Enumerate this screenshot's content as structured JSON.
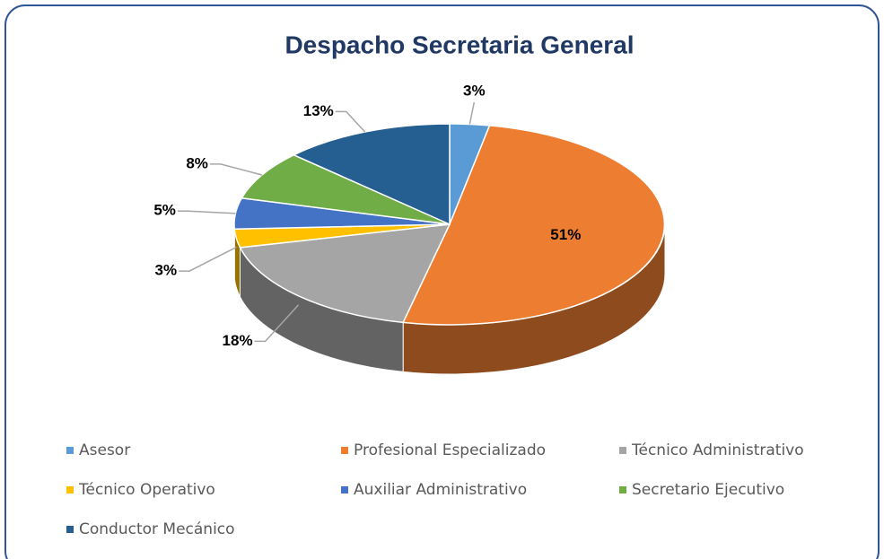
{
  "chart_data": {
    "type": "pie",
    "title": "Despacho Secretaria General",
    "categories": [
      "Asesor",
      "Profesional Especializado",
      "Técnico Administrativo",
      "Técnico Operativo",
      "Auxiliar Administrativo",
      "Secretario Ejecutivo",
      "Conductor Mecánico"
    ],
    "values": [
      3,
      51,
      18,
      3,
      5,
      8,
      13
    ],
    "value_labels": [
      "3%",
      "51%",
      "18%",
      "3%",
      "5%",
      "8%",
      "13%"
    ],
    "colors": [
      "#5b9bd5",
      "#ed7d31",
      "#a5a5a5",
      "#ffc000",
      "#4472c4",
      "#70ad47",
      "#255e91"
    ],
    "legend": "bottom"
  }
}
